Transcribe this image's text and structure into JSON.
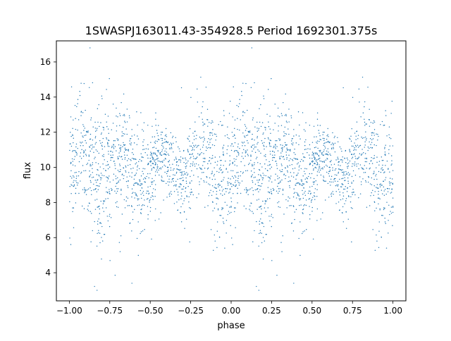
{
  "chart_data": {
    "type": "scatter",
    "title": "1SWASPJ163011.43-354928.5 Period 1692301.375s",
    "xlabel": "phase",
    "ylabel": "flux",
    "xlim": [
      -1.08,
      1.08
    ],
    "ylim": [
      2.4,
      17.2
    ],
    "x_ticks": [
      -1.0,
      -0.75,
      -0.5,
      -0.25,
      0.0,
      0.25,
      0.5,
      0.75,
      1.0
    ],
    "x_tick_labels": [
      "−1.00",
      "−0.75",
      "−0.50",
      "−0.25",
      "0.00",
      "0.25",
      "0.50",
      "0.75",
      "1.00"
    ],
    "y_ticks": [
      4,
      6,
      8,
      10,
      12,
      14,
      16
    ],
    "y_tick_labels": [
      "4",
      "6",
      "8",
      "10",
      "12",
      "14",
      "16"
    ],
    "grid": false,
    "legend": false,
    "series": [
      {
        "marker_color": "#1f77b4",
        "x_range": [
          -1.0,
          1.0
        ],
        "baseline_flux": 10.0,
        "typical_flux_range": [
          6.5,
          13.0
        ],
        "min_flux": 3.0,
        "max_flux": 16.8,
        "point_count": 2600
      }
    ]
  }
}
